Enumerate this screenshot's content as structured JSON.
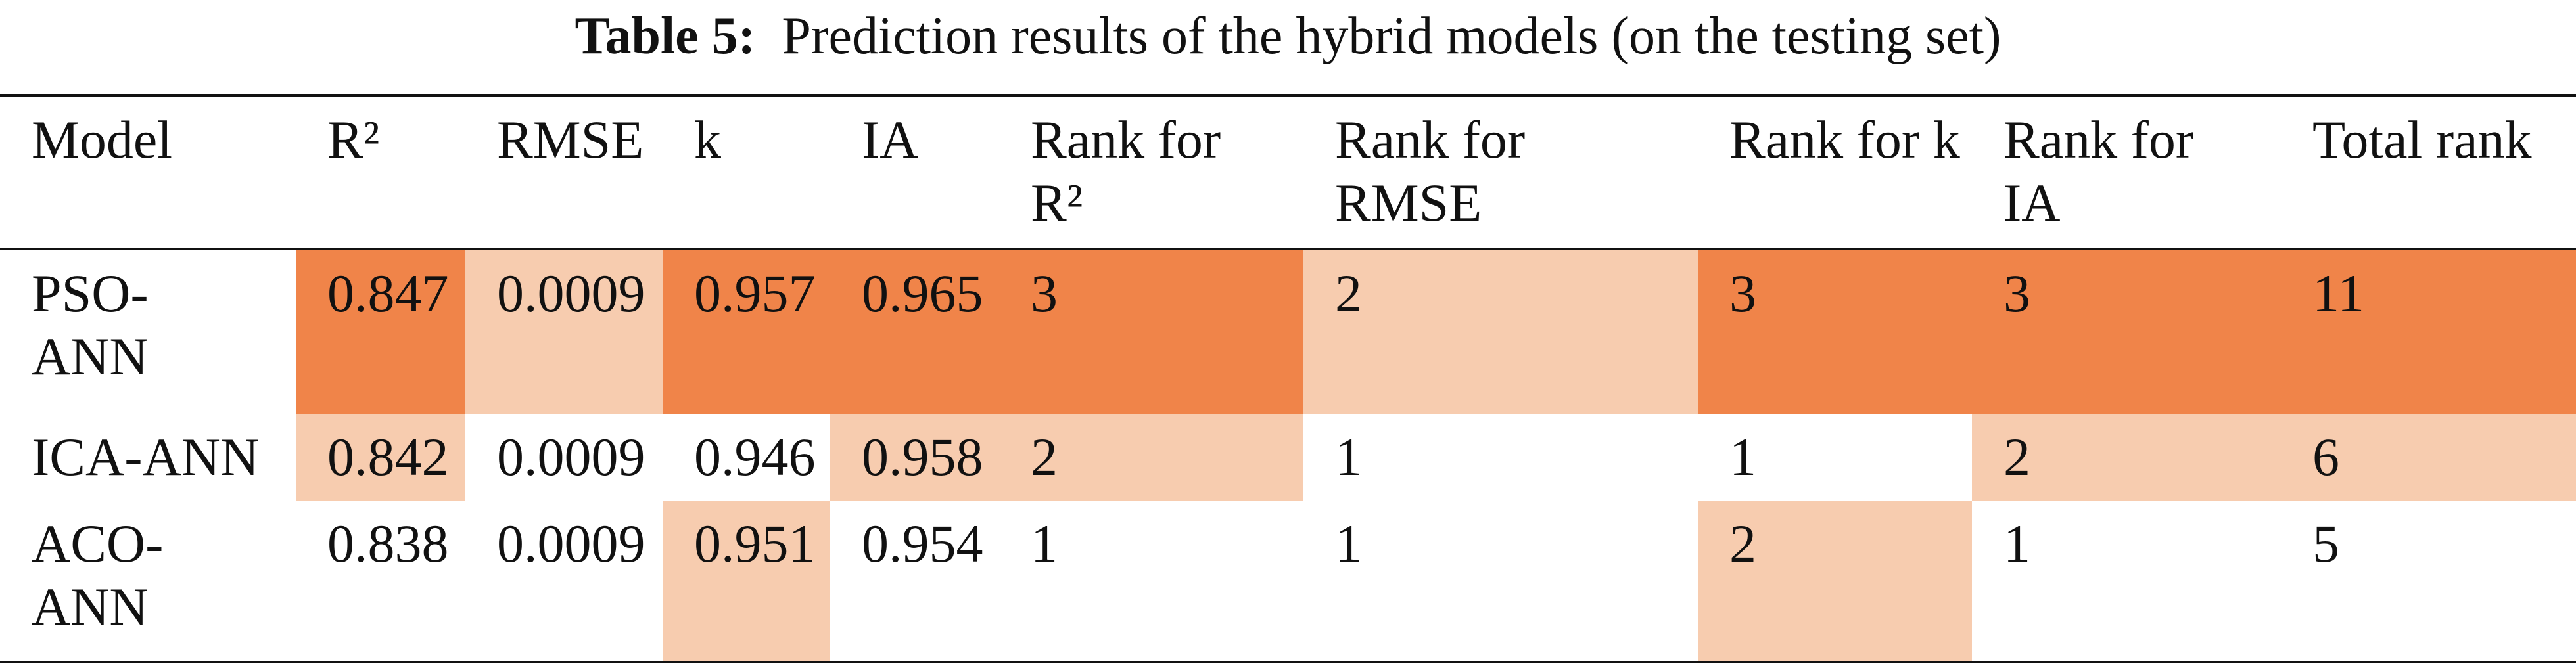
{
  "table": {
    "caption": {
      "label": "Table 5:",
      "text": "Prediction results of the hybrid models (on the testing set)"
    },
    "header": [
      "Model",
      "R²",
      "RMSE",
      "k",
      "IA",
      "Rank for R²",
      "Rank for RMSE",
      "Rank for k",
      "Rank for IA",
      "Total rank"
    ],
    "rows": [
      [
        "PSO-ANN",
        "0.847",
        "0.0009",
        "0.957",
        "0.965",
        "3",
        "2",
        "3",
        "3",
        "11"
      ],
      [
        "ICA-ANN",
        "0.842",
        "0.0009",
        "0.946",
        "0.958",
        "2",
        "1",
        "1",
        "2",
        "6"
      ],
      [
        "ACO-ANN",
        "0.838",
        "0.0009",
        "0.951",
        "0.954",
        "1",
        "1",
        "2",
        "1",
        "5"
      ]
    ]
  }
}
